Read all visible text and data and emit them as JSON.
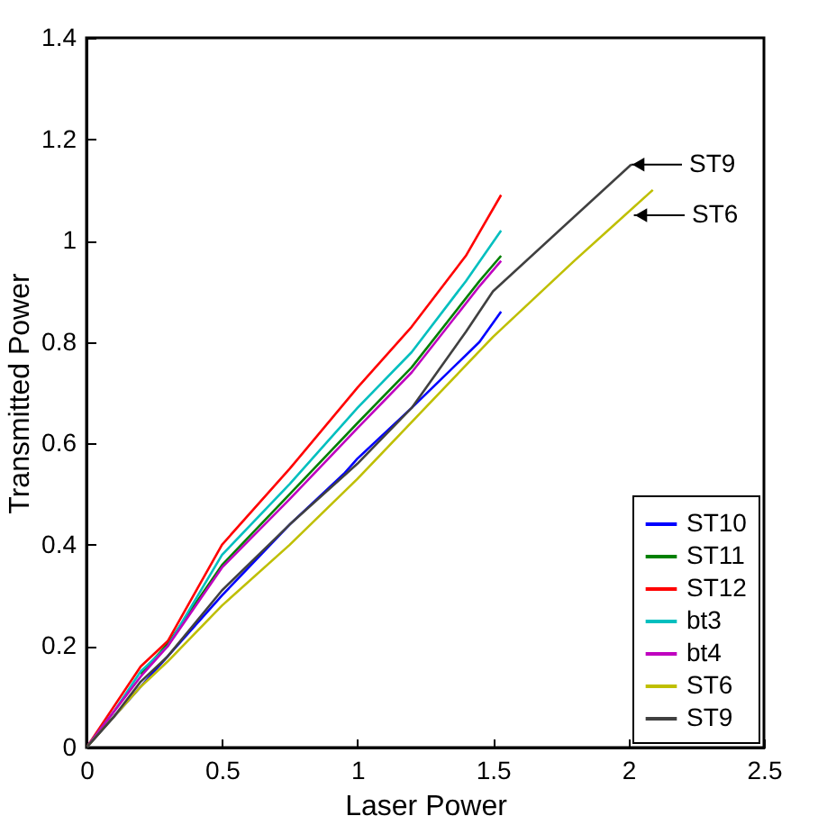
{
  "chart_data": {
    "type": "line",
    "xlabel": "Laser Power",
    "ylabel": "Transmitted Power",
    "xlim": [
      0,
      2.5
    ],
    "xticks": [
      0,
      0.5,
      1,
      1.5,
      2,
      2.5
    ],
    "ylim": [
      0,
      1.4
    ],
    "yticks": [
      0,
      0.2,
      0.4,
      0.6,
      0.8,
      1,
      1.2,
      1.4
    ],
    "legend": "bottom right",
    "grid": false,
    "series": [
      {
        "name": "ST10",
        "color": "#0000ff",
        "x": [
          0,
          0.2,
          0.3,
          0.5,
          0.75,
          0.95,
          1.0,
          1.2,
          1.45,
          1.53
        ],
        "values": [
          0,
          0.12,
          0.18,
          0.3,
          0.44,
          0.54,
          0.57,
          0.67,
          0.8,
          0.86
        ]
      },
      {
        "name": "ST11",
        "color": "#008000",
        "x": [
          0.2,
          0.3,
          0.5,
          0.75,
          1.0,
          1.2,
          1.45,
          1.53
        ],
        "values": [
          0.145,
          0.205,
          0.36,
          0.5,
          0.64,
          0.75,
          0.92,
          0.97
        ]
      },
      {
        "name": "ST12",
        "color": "#ff0000",
        "x": [
          0,
          0.1,
          0.2,
          0.3,
          0.5,
          0.75,
          1.0,
          1.2,
          1.4,
          1.53
        ],
        "values": [
          0,
          0.08,
          0.16,
          0.21,
          0.4,
          0.55,
          0.71,
          0.83,
          0.97,
          1.09
        ]
      },
      {
        "name": "bt3",
        "color": "#00bfbf",
        "x": [
          0,
          0.1,
          0.2,
          0.3,
          0.5,
          0.75,
          1.0,
          1.2,
          1.4,
          1.53
        ],
        "values": [
          0,
          0.07,
          0.15,
          0.2,
          0.38,
          0.52,
          0.67,
          0.78,
          0.92,
          1.02
        ]
      },
      {
        "name": "bt4",
        "color": "#bf00bf",
        "x": [
          0,
          0.1,
          0.2,
          0.3,
          0.5,
          0.75,
          1.0,
          1.2,
          1.45,
          1.53
        ],
        "values": [
          0,
          0.07,
          0.14,
          0.2,
          0.355,
          0.49,
          0.63,
          0.74,
          0.91,
          0.96
        ]
      },
      {
        "name": "ST6",
        "color": "#bfbf00",
        "x": [
          0,
          0.1,
          0.2,
          0.3,
          0.5,
          0.75,
          1.0,
          1.25,
          1.5,
          1.8,
          2.09
        ],
        "values": [
          0,
          0.06,
          0.12,
          0.17,
          0.28,
          0.4,
          0.53,
          0.67,
          0.81,
          0.96,
          1.1
        ]
      },
      {
        "name": "ST9",
        "color": "#404040",
        "x": [
          0,
          0.1,
          0.2,
          0.3,
          0.5,
          0.75,
          1.0,
          1.2,
          1.4,
          1.5,
          2.01
        ],
        "values": [
          0,
          0.06,
          0.13,
          0.18,
          0.31,
          0.44,
          0.56,
          0.67,
          0.82,
          0.9,
          1.15
        ]
      }
    ],
    "annotations": [
      {
        "text": "ST9",
        "x": 2.01,
        "y": 1.15
      },
      {
        "text": "ST6",
        "x": 2.02,
        "y": 1.05
      }
    ]
  }
}
